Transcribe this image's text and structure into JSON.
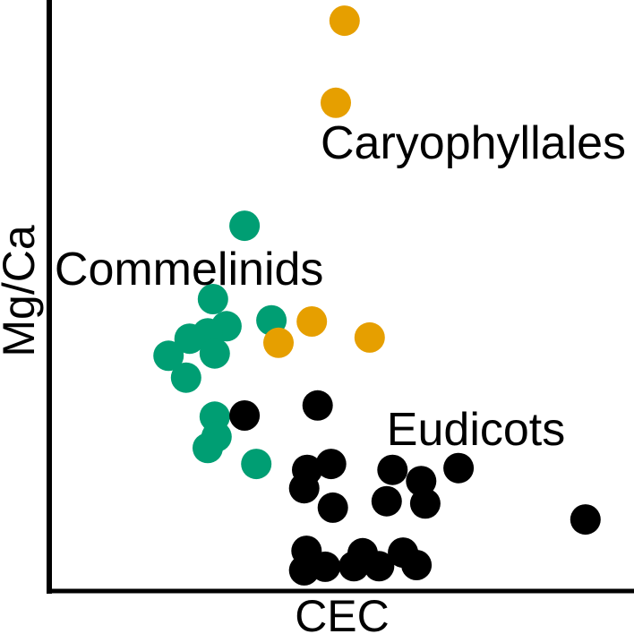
{
  "chart_data": {
    "type": "scatter",
    "title": "",
    "xlabel": "CEC",
    "ylabel": "Mg/Ca",
    "x_range": [
      0,
      100
    ],
    "y_range": [
      0,
      100
    ],
    "grid": false,
    "ticks": "none (bare left and bottom spines only)",
    "legend_position": "none (inline text annotations)",
    "marker_radius_px": 17,
    "axis_color": "#000000",
    "background_color": "#ffffff",
    "series": [
      {
        "name": "Commelinids",
        "color": "#009E73",
        "points": [
          [
            33.4,
            61.8
          ],
          [
            28.0,
            49.4
          ],
          [
            30.3,
            44.8
          ],
          [
            27.1,
            43.6
          ],
          [
            24.0,
            42.7
          ],
          [
            20.4,
            39.8
          ],
          [
            28.3,
            40.2
          ],
          [
            23.4,
            36.1
          ],
          [
            38.0,
            45.8
          ],
          [
            28.3,
            29.5
          ],
          [
            28.6,
            26.1
          ],
          [
            27.1,
            24.2
          ],
          [
            35.4,
            21.5
          ]
        ]
      },
      {
        "name": "Caryophyllales",
        "color": "#E69F00",
        "points": [
          [
            50.5,
            96.5
          ],
          [
            49.0,
            82.6
          ],
          [
            39.2,
            42.0
          ],
          [
            44.9,
            45.6
          ],
          [
            54.8,
            42.9
          ]
        ]
      },
      {
        "name": "Eudicots",
        "color": "#000000",
        "points": [
          [
            45.9,
            31.4
          ],
          [
            33.4,
            29.7
          ],
          [
            44.1,
            20.5
          ],
          [
            48.2,
            21.5
          ],
          [
            43.6,
            17.4
          ],
          [
            48.5,
            14.1
          ],
          [
            58.7,
            20.5
          ],
          [
            57.7,
            15.2
          ],
          [
            63.6,
            18.6
          ],
          [
            64.3,
            14.8
          ],
          [
            70.0,
            20.8
          ],
          [
            91.7,
            12.1
          ],
          [
            44.0,
            6.8
          ],
          [
            43.6,
            3.5
          ],
          [
            47.2,
            4.1
          ],
          [
            52.1,
            4.2
          ],
          [
            53.6,
            6.4
          ],
          [
            56.4,
            4.2
          ],
          [
            60.5,
            6.5
          ],
          [
            62.8,
            4.4
          ]
        ]
      }
    ],
    "annotations": [
      {
        "text": "Commelinids",
        "x": 0.9,
        "y": 51.8,
        "anchor": "start"
      },
      {
        "text": "Caryophyllales",
        "x": 46.4,
        "y": 73.2,
        "anchor": "start"
      },
      {
        "text": "Eudicots",
        "x": 57.7,
        "y": 24.7,
        "anchor": "start"
      }
    ]
  }
}
